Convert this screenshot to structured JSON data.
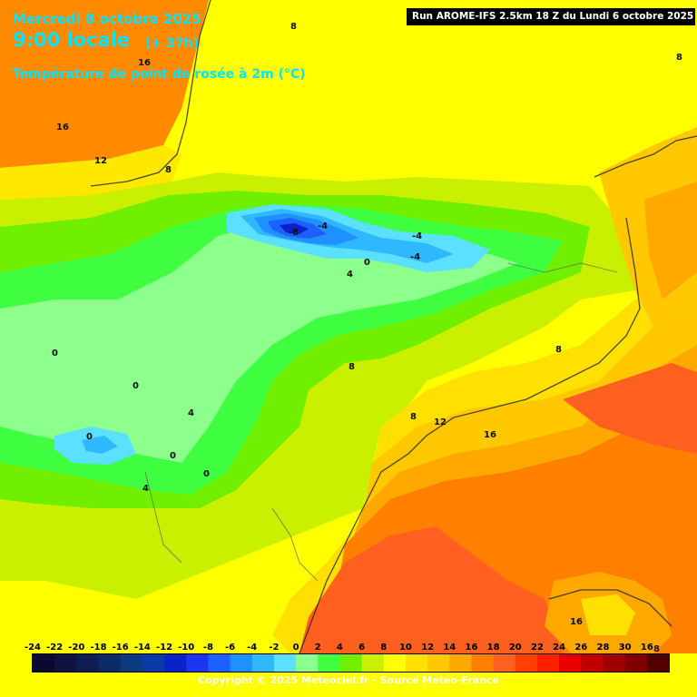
{
  "header": {
    "date": "Mercredi 8 octobre 2025",
    "time": "9:00 locale",
    "lead": "(+ 37h)",
    "parameter": "Température de point de rosée à 2m (°C)"
  },
  "run_info": "Run AROME-IFS 2.5km 18 Z du Lundi 6 octobre 2025",
  "copyright": "Copyright © 2025 Meteociel.fr - Source Meteo-France",
  "legend": {
    "ticks": [
      "-24",
      "-22",
      "-20",
      "-18",
      "-16",
      "-14",
      "-12",
      "-10",
      "-8",
      "-6",
      "-4",
      "-2",
      "0",
      "2",
      "4",
      "6",
      "8",
      "10",
      "12",
      "14",
      "16",
      "18",
      "20",
      "22",
      "24",
      "26",
      "28",
      "30",
      "16"
    ],
    "colors": [
      "#0a0a30",
      "#12123f",
      "#0e1d52",
      "#0b2b66",
      "#0b3a80",
      "#0a3aa8",
      "#0b22c8",
      "#1a36f0",
      "#1c60ff",
      "#1e90ff",
      "#30b8ff",
      "#5ce0ff",
      "#8cff8c",
      "#40ff40",
      "#70f000",
      "#c8f000",
      "#ffff00",
      "#ffe000",
      "#ffc800",
      "#ffa800",
      "#ff8000",
      "#ff6020",
      "#ff4000",
      "#ff2000",
      "#e80000",
      "#c00000",
      "#a00000",
      "#800000",
      "#500000"
    ]
  },
  "contour_labels": [
    "16",
    "16",
    "12",
    "8",
    "8",
    "8",
    "-8",
    "-4",
    "-4",
    "-4",
    "0",
    "4",
    "0",
    "0",
    "0",
    "0",
    "4",
    "0",
    "4",
    "8",
    "8",
    "8",
    "12",
    "16",
    "16",
    "8"
  ]
}
